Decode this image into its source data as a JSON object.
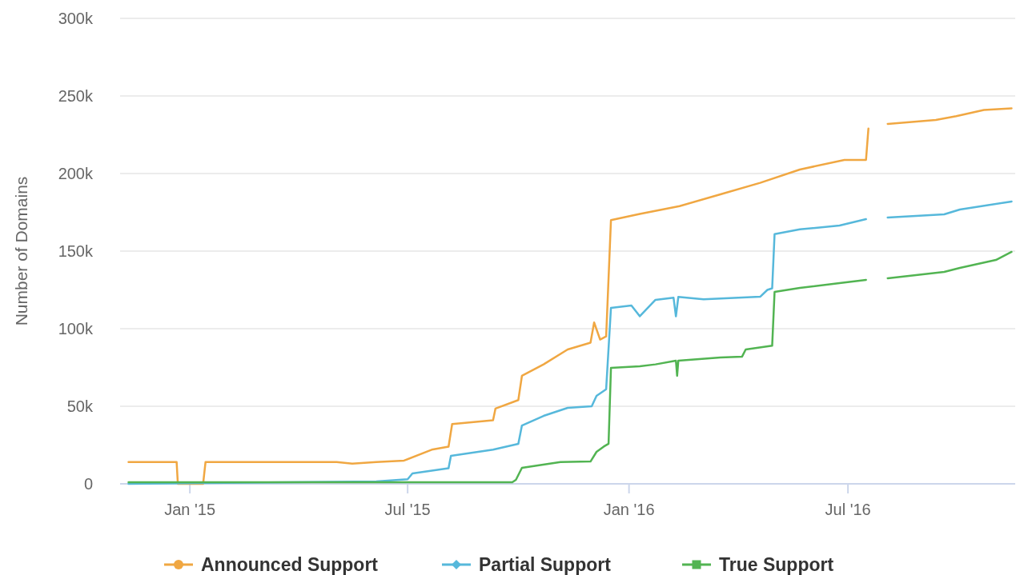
{
  "chart_data": {
    "type": "line",
    "ylabel": "Number of Domains",
    "xlim": [
      "2014-11-04",
      "2016-11-17"
    ],
    "ylim": [
      0,
      300000
    ],
    "xticks": [
      {
        "value": "2015-01-01",
        "label": "Jan '15"
      },
      {
        "value": "2015-07-01",
        "label": "Jul '15"
      },
      {
        "value": "2016-01-01",
        "label": "Jan '16"
      },
      {
        "value": "2016-07-01",
        "label": "Jul '16"
      }
    ],
    "yticks": [
      0,
      {
        "value": 50000,
        "label": "50k"
      },
      {
        "value": 100000,
        "label": "100k"
      },
      {
        "value": 150000,
        "label": "150k"
      },
      {
        "value": 200000,
        "label": "200k"
      },
      {
        "value": 250000,
        "label": "250k"
      },
      {
        "value": 300000,
        "label": "300k"
      }
    ],
    "grid": "y",
    "legend": "bottom",
    "line_style": "solid",
    "series": [
      {
        "name": "Announced Support",
        "color": "#f0a742",
        "x": [
          "2014-11-11",
          "2014-12-21",
          "2014-12-22",
          "2015-01-12",
          "2015-01-14",
          "2015-05-03",
          "2015-05-16",
          "2015-06-05",
          "2015-06-28",
          "2015-07-21",
          "2015-08-04",
          "2015-08-07",
          "2015-09-10",
          "2015-09-12",
          "2015-10-01",
          "2015-10-04",
          "2015-10-22",
          "2015-11-11",
          "2015-11-30",
          "2015-12-03",
          "2015-12-08",
          "2015-12-13",
          "2015-12-17",
          "2016-01-10",
          "2016-02-12",
          "2016-03-17",
          "2016-04-19",
          "2016-05-22",
          "2016-06-28",
          "2016-07-16",
          "2016-07-18",
          "2016-07-24",
          "2016-08-03",
          "2016-09-12",
          "2016-09-29",
          "2016-10-22",
          "2016-11-14"
        ],
        "values": [
          14000,
          14000,
          0,
          0,
          14000,
          14000,
          13000,
          14000,
          15000,
          22000,
          24000,
          38500,
          41000,
          48500,
          54000,
          69600,
          77000,
          86600,
          91000,
          104000,
          93000,
          95000,
          170000,
          174000,
          179000,
          186600,
          194000,
          202600,
          208800,
          208800,
          229000,
          null,
          232000,
          234500,
          237000,
          241000,
          242000
        ]
      },
      {
        "name": "Partial Support",
        "color": "#56b8db",
        "x": [
          "2014-11-11",
          "2015-06-05",
          "2015-07-01",
          "2015-07-05",
          "2015-08-04",
          "2015-08-06",
          "2015-09-10",
          "2015-10-01",
          "2015-10-04",
          "2015-10-22",
          "2015-11-11",
          "2015-12-01",
          "2015-12-05",
          "2015-12-13",
          "2015-12-17",
          "2016-01-03",
          "2016-01-10",
          "2016-01-23",
          "2016-02-07",
          "2016-02-09",
          "2016-02-11",
          "2016-03-03",
          "2016-04-19",
          "2016-04-25",
          "2016-04-29",
          "2016-05-01",
          "2016-05-22",
          "2016-06-24",
          "2016-07-16",
          "2016-07-24",
          "2016-08-03",
          "2016-09-19",
          "2016-10-02",
          "2016-11-14"
        ],
        "values": [
          0,
          1500,
          3000,
          6700,
          10000,
          18000,
          22000,
          25800,
          37600,
          43800,
          49000,
          50000,
          56700,
          61000,
          113400,
          115000,
          108000,
          118600,
          120000,
          108000,
          120500,
          119000,
          120600,
          125000,
          126000,
          161000,
          164000,
          166500,
          170600,
          null,
          171700,
          173700,
          176800,
          182000
        ]
      },
      {
        "name": "True Support",
        "color": "#52b452",
        "x": [
          "2014-11-11",
          "2015-09-26",
          "2015-09-29",
          "2015-10-04",
          "2015-11-05",
          "2015-11-30",
          "2015-12-05",
          "2015-12-11",
          "2015-12-15",
          "2015-12-17",
          "2016-01-10",
          "2016-01-23",
          "2016-02-09",
          "2016-02-10",
          "2016-02-11",
          "2016-03-17",
          "2016-04-04",
          "2016-04-07",
          "2016-04-29",
          "2016-05-01",
          "2016-05-22",
          "2016-06-24",
          "2016-07-16",
          "2016-07-24",
          "2016-08-03",
          "2016-09-19",
          "2016-10-02",
          "2016-11-01",
          "2016-11-14"
        ],
        "values": [
          1000,
          1000,
          2600,
          10300,
          14000,
          14400,
          20600,
          24000,
          25800,
          74700,
          75800,
          77000,
          79400,
          69600,
          79400,
          81400,
          82000,
          86600,
          89000,
          123700,
          126300,
          129400,
          131500,
          null,
          132500,
          136600,
          139200,
          144300,
          149500
        ]
      }
    ]
  }
}
